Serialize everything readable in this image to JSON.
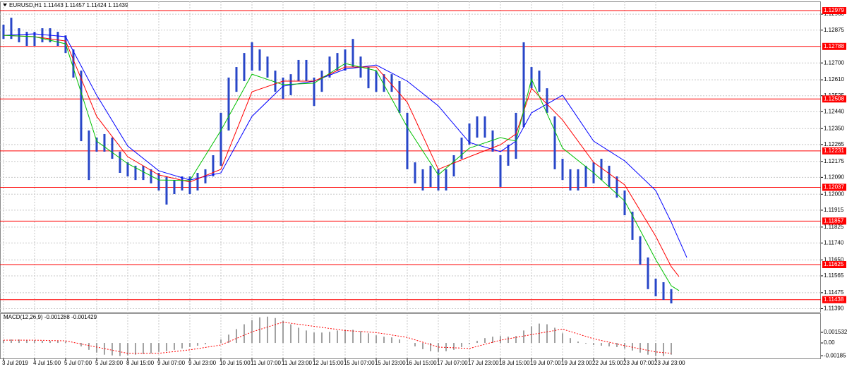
{
  "chart_data": {
    "type": "ohlc",
    "title": "EURUSD,H1  1.11443 1.11457 1.11424 1.11439",
    "color": "#2846c8",
    "high": [
      1.12904,
      1.12941,
      1.12885,
      1.12866,
      1.12866,
      1.12885,
      1.12885,
      1.12866,
      1.12847,
      1.12772,
      1.12659,
      1.1234,
      1.12302,
      1.12321,
      1.12302,
      1.12227,
      1.1217,
      1.12152,
      1.12152,
      1.12133,
      1.12114,
      1.12095,
      1.12076,
      1.12095,
      1.12095,
      1.12114,
      1.12133,
      1.12208,
      1.12434,
      1.12622,
      1.12678,
      1.12753,
      1.1281,
      1.12772,
      1.12734,
      1.12659,
      1.12622,
      1.1264,
      1.12716,
      1.12716,
      1.12622,
      1.12659,
      1.12734,
      1.12753,
      1.12772,
      1.12828,
      1.12734,
      1.12678,
      1.12659,
      1.1264,
      1.1264,
      1.12603,
      1.12434,
      1.1217,
      1.12133,
      1.12152,
      1.12133,
      1.12133,
      1.12208,
      1.12302,
      1.12377,
      1.12415,
      1.12415,
      1.1234,
      1.12208,
      1.12264,
      1.12434,
      1.1281,
      1.12678,
      1.12659,
      1.12565,
      1.12415,
      1.12189,
      1.12133,
      1.12133,
      1.12152,
      1.1217,
      1.12189,
      1.12152,
      1.12095,
      1.1202,
      1.11907,
      1.11776,
      1.11663,
      1.1155,
      1.11531,
      1.11494
    ],
    "low": [
      1.12828,
      1.12828,
      1.1281,
      1.12791,
      1.12791,
      1.1281,
      1.1281,
      1.12791,
      1.12753,
      1.12622,
      1.12283,
      1.12076,
      1.12227,
      1.12227,
      1.12189,
      1.12114,
      1.12095,
      1.12076,
      1.12076,
      1.12058,
      1.1202,
      1.11945,
      1.12001,
      1.1202,
      1.12001,
      1.1202,
      1.12058,
      1.12095,
      1.12152,
      1.1234,
      1.12546,
      1.12603,
      1.12659,
      1.12659,
      1.12622,
      1.12546,
      1.12509,
      1.12528,
      1.12603,
      1.12603,
      1.12471,
      1.12546,
      1.12622,
      1.12659,
      1.12659,
      1.12678,
      1.12622,
      1.12565,
      1.12546,
      1.12546,
      1.12546,
      1.12434,
      1.12133,
      1.12058,
      1.1202,
      1.12039,
      1.1202,
      1.1202,
      1.12095,
      1.12189,
      1.12264,
      1.12302,
      1.12302,
      1.12227,
      1.12039,
      1.12152,
      1.12189,
      1.12358,
      1.12565,
      1.12546,
      1.12434,
      1.12133,
      1.12076,
      1.1202,
      1.1202,
      1.12039,
      1.12058,
      1.12076,
      1.12039,
      1.11982,
      1.11888,
      1.11757,
      1.11625,
      1.11494,
      1.11456,
      1.11437,
      1.11418
    ],
    "xlim": [
      -0.45,
      105.27
    ],
    "xticks": [
      {
        "value": 0,
        "label": "3 Jul 2019"
      },
      {
        "value": 4,
        "label": "4 Jul 15:00"
      },
      {
        "value": 8,
        "label": "5 Jul 07:00"
      },
      {
        "value": 12,
        "label": "5 Jul 23:00"
      },
      {
        "value": 16,
        "label": "8 Jul 15:00"
      },
      {
        "value": 20,
        "label": "9 Jul 07:00"
      },
      {
        "value": 24,
        "label": "9 Jul 23:00"
      },
      {
        "value": 28,
        "label": "10 Jul 15:00"
      },
      {
        "value": 32,
        "label": "11 Jul 07:00"
      },
      {
        "value": 36,
        "label": "11 Jul 23:00"
      },
      {
        "value": 40,
        "label": "12 Jul 15:00"
      },
      {
        "value": 44,
        "label": "15 Jul 07:00"
      },
      {
        "value": 48,
        "label": "15 Jul 23:00"
      },
      {
        "value": 52,
        "label": "16 Jul 15:00"
      },
      {
        "value": 56,
        "label": "17 Jul 07:00"
      },
      {
        "value": 60,
        "label": "17 Jul 23:00"
      },
      {
        "value": 64,
        "label": "18 Jul 15:00"
      },
      {
        "value": 68,
        "label": "19 Jul 07:00"
      },
      {
        "value": 72,
        "label": "19 Jul 23:00"
      },
      {
        "value": 76,
        "label": "22 Jul 15:00"
      },
      {
        "value": 80,
        "label": "23 Jul 07:00"
      },
      {
        "value": 84,
        "label": "23 Jul 23:00"
      }
    ],
    "ylim": [
      1.11373,
      1.13028
    ],
    "yticks": [
      {
        "value": 1.1296,
        "label": "1.12960"
      },
      1.12875,
      {
        "value": 1.127,
        "label": "1.12700"
      },
      {
        "value": 1.1261,
        "label": "1.12610"
      },
      1.12525,
      {
        "value": 1.1244,
        "label": "1.12440"
      },
      {
        "value": 1.1235,
        "label": "1.12350"
      },
      1.12265,
      1.12175,
      {
        "value": 1.1209,
        "label": "1.12090"
      },
      {
        "value": 1.12,
        "label": "1.12000"
      },
      1.11915,
      1.11825,
      {
        "value": 1.1174,
        "label": "1.11740"
      },
      {
        "value": 1.1165,
        "label": "1.11650"
      },
      1.11565,
      1.11475,
      {
        "value": 1.1139,
        "label": "1.11390"
      }
    ],
    "grid": true,
    "levels": [
      1.12979,
      1.12788,
      1.12508,
      1.12231,
      1.12037,
      1.11857,
      1.11625,
      1.11438
    ],
    "level_color": "#ff0000",
    "series": [
      {
        "color": "#0000ff",
        "x": [
          0,
          4,
          8,
          12,
          16,
          20,
          24,
          28,
          32,
          36,
          40,
          44,
          48,
          52,
          56,
          60,
          64,
          66,
          68,
          72,
          76,
          80,
          84,
          86,
          88
        ],
        "values": [
          1.12847,
          1.12855,
          1.1284,
          1.12528,
          1.12257,
          1.12125,
          1.12076,
          1.12114,
          1.12415,
          1.12576,
          1.12603,
          1.12667,
          1.12689,
          1.12603,
          1.12471,
          1.12276,
          1.12227,
          1.12283,
          1.12434,
          1.12528,
          1.12283,
          1.12178,
          1.1202,
          1.11851,
          1.11663
        ]
      },
      {
        "color": "#ff0000",
        "x": [
          0,
          4,
          8,
          12,
          16,
          20,
          24,
          28,
          32,
          36,
          40,
          44,
          48,
          52,
          56,
          60,
          64,
          66,
          68,
          72,
          76,
          80,
          84,
          86,
          87
        ],
        "values": [
          1.12847,
          1.1284,
          1.12817,
          1.12415,
          1.122,
          1.12103,
          1.12065,
          1.12133,
          1.12546,
          1.12603,
          1.12603,
          1.12678,
          1.12678,
          1.1249,
          1.12133,
          1.122,
          1.12264,
          1.12321,
          1.12565,
          1.12396,
          1.1217,
          1.1205,
          1.11776,
          1.11614,
          1.11561
        ]
      },
      {
        "color": "#00c000",
        "x": [
          0,
          4,
          8,
          12,
          16,
          20,
          24,
          28,
          32,
          36,
          40,
          44,
          48,
          52,
          56,
          60,
          64,
          66,
          68,
          72,
          76,
          80,
          84,
          86,
          87
        ],
        "values": [
          1.12847,
          1.1284,
          1.12802,
          1.12283,
          1.12163,
          1.12076,
          1.12073,
          1.1234,
          1.1264,
          1.12584,
          1.12592,
          1.12697,
          1.12659,
          1.12358,
          1.12103,
          1.12246,
          1.12302,
          1.12283,
          1.12614,
          1.12246,
          1.12114,
          1.11964,
          1.11652,
          1.11512,
          1.11486
        ]
      }
    ],
    "macd": {
      "title": "MACD(12,26,9) -0.001288 -0.001429",
      "ylim": [
        -0.00224,
        0.00429
      ],
      "yticks": [
        0.001532,
        {
          "value": 0,
          "label": "0.00"
        },
        -0.00185
      ],
      "histogram_color": "#a0a0a0",
      "histogram": [
        0.0004,
        0.0005,
        0.0005,
        0.0004,
        0.0004,
        0.0003,
        0.0003,
        0.0003,
        0.0002,
        0,
        -0.0005,
        -0.001,
        -0.0014,
        -0.0017,
        -0.0018,
        -0.0019,
        -0.0018,
        -0.0017,
        -0.0016,
        -0.0015,
        -0.0013,
        -0.0012,
        -0.001,
        -0.0008,
        -0.0006,
        -0.0004,
        -0.0002,
        0,
        0.0005,
        0.0012,
        0.002,
        0.0027,
        0.0033,
        0.0037,
        0.0038,
        0.0036,
        0.0032,
        0.0027,
        0.0022,
        0.0018,
        0.0015,
        0.0015,
        0.0016,
        0.0018,
        0.0019,
        0.0019,
        0.0017,
        0.0014,
        0.0011,
        0.0009,
        0.0008,
        0.0005,
        0,
        -0.0005,
        -0.0009,
        -0.0012,
        -0.0013,
        -0.0012,
        -0.001,
        -0.0006,
        -0.0002,
        0.0003,
        0.0007,
        0.0009,
        0.001,
        0.0009,
        0.001,
        0.0018,
        0.0024,
        0.0028,
        0.0027,
        0.0022,
        0.0014,
        0.0007,
        0.0002,
        -0.0001,
        -0.0003,
        -0.0004,
        -0.0005,
        -0.0006,
        -0.0008,
        -0.0011,
        -0.0014,
        -0.0017,
        -0.0019,
        -0.0019,
        -0.0017
      ],
      "signal": {
        "color": "#ff0000",
        "x": [
          0,
          4,
          8,
          12,
          16,
          20,
          24,
          28,
          32,
          36,
          40,
          44,
          48,
          52,
          56,
          60,
          64,
          68,
          72,
          76,
          80,
          84,
          86
        ],
        "values": [
          0.0004,
          0.0004,
          0.0003,
          -0.0006,
          -0.0015,
          -0.0015,
          -0.001,
          -0.0003,
          0.0016,
          0.003,
          0.0024,
          0.0018,
          0.0015,
          0.0008,
          -0.0006,
          -0.0008,
          0.0004,
          0.0012,
          0.002,
          0.0006,
          -0.0004,
          -0.0013,
          -0.0015
        ]
      }
    }
  }
}
